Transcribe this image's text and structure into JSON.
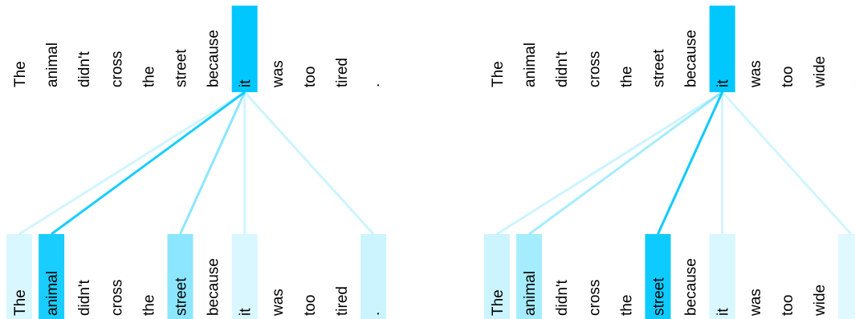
{
  "panels": [
    {
      "top_tokens": [
        "The",
        "animal",
        "didn't",
        "cross",
        "the",
        "street",
        "because",
        "it",
        "was",
        "too",
        "tired",
        "."
      ],
      "bottom_tokens": [
        "The",
        "animal",
        "didn't",
        "cross",
        "the",
        "street",
        "because",
        "it",
        "was",
        "too",
        "tired",
        "."
      ],
      "query_index": 7,
      "attention": [
        0.15,
        0.9,
        0,
        0,
        0,
        0.45,
        0,
        0.15,
        0,
        0,
        0,
        0.2
      ]
    },
    {
      "top_tokens": [
        "The",
        "animal",
        "didn't",
        "cross",
        "the",
        "street",
        "because",
        "it",
        "was",
        "too",
        "wide",
        "."
      ],
      "bottom_tokens": [
        "The",
        "animal",
        "didn't",
        "cross",
        "the",
        "street",
        "because",
        "it",
        "was",
        "too",
        "wide",
        "."
      ],
      "query_index": 7,
      "attention": [
        0.2,
        0.35,
        0,
        0,
        0,
        0.95,
        0,
        0.15,
        0,
        0,
        0,
        0.12
      ]
    }
  ],
  "colors": {
    "highlight": "#00c8ff",
    "text": "#000000"
  }
}
